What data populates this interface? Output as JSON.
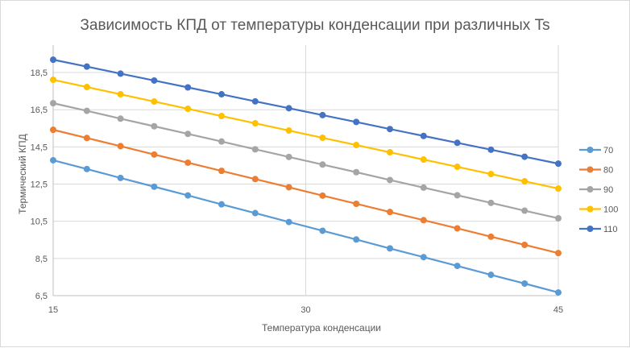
{
  "chart_data": {
    "type": "line",
    "title": "Зависимость КПД от температуры конденсации при различных Ts",
    "xlabel": "Температура конденсации",
    "ylabel": "Термический КПД",
    "x": [
      15,
      17,
      19,
      21,
      23,
      25,
      27,
      29,
      31,
      33,
      35,
      37,
      39,
      41,
      43,
      45
    ],
    "xticks": [
      "15",
      "30",
      "45"
    ],
    "xlim": [
      15,
      45
    ],
    "yticks": [
      "6,5",
      "8,5",
      "10,5",
      "12,5",
      "14,5",
      "16,5",
      "18,5"
    ],
    "ylim": [
      6.5,
      20.5
    ],
    "grid": true,
    "legend": "right",
    "series": [
      {
        "name": "70",
        "color": "#5B9BD5",
        "values": [
          13.78,
          13.31,
          12.83,
          12.36,
          11.89,
          11.41,
          10.94,
          10.46,
          9.99,
          9.52,
          9.04,
          8.57,
          8.1,
          7.62,
          7.15,
          6.67
        ]
      },
      {
        "name": "80",
        "color": "#ED7D31",
        "values": [
          15.42,
          14.98,
          14.54,
          14.09,
          13.65,
          13.21,
          12.77,
          12.33,
          11.88,
          11.44,
          11.0,
          10.56,
          10.12,
          9.67,
          9.23,
          8.79
        ]
      },
      {
        "name": "90",
        "color": "#A5A5A5",
        "values": [
          16.85,
          16.44,
          16.02,
          15.61,
          15.2,
          14.79,
          14.37,
          13.96,
          13.55,
          13.14,
          12.72,
          12.31,
          11.9,
          11.49,
          11.07,
          10.66
        ]
      },
      {
        "name": "100",
        "color": "#FFC000",
        "values": [
          18.11,
          17.72,
          17.33,
          16.94,
          16.55,
          16.16,
          15.77,
          15.38,
          14.99,
          14.6,
          14.21,
          13.82,
          13.43,
          13.04,
          12.65,
          12.26
        ]
      },
      {
        "name": "110",
        "color": "#4472C4",
        "values": [
          19.19,
          18.82,
          18.44,
          18.07,
          17.7,
          17.33,
          16.95,
          16.58,
          16.21,
          15.84,
          15.46,
          15.09,
          14.72,
          14.35,
          13.97,
          13.6
        ]
      }
    ]
  }
}
